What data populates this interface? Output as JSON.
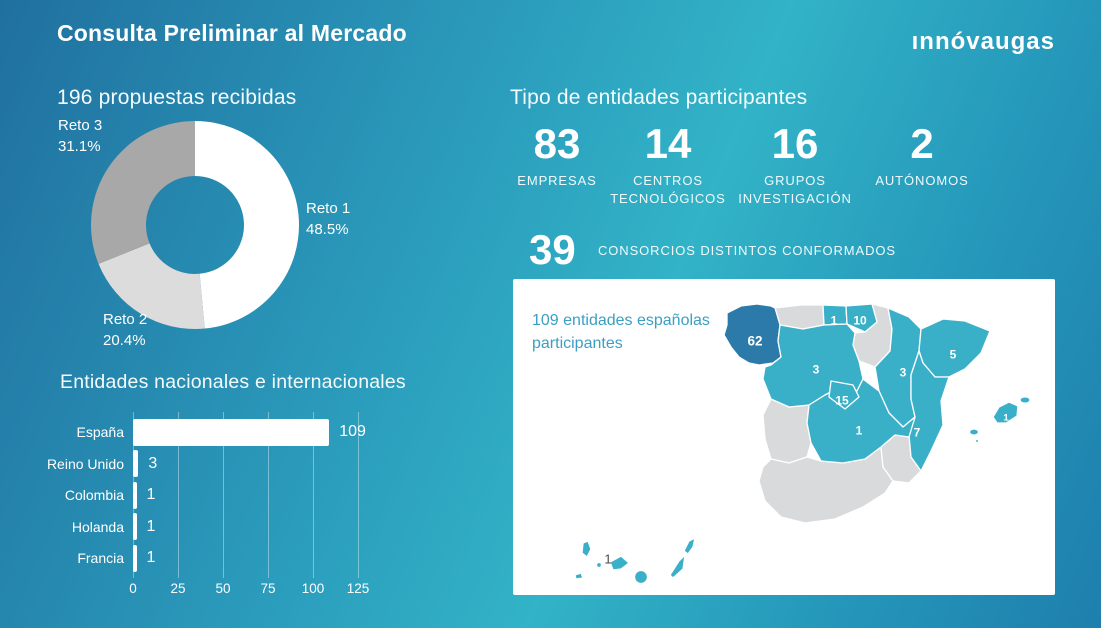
{
  "header": {
    "title": "Consulta Preliminar al Mercado",
    "brand": "ınnóvaugas"
  },
  "sections": {
    "proposals_title": "196 propuestas recibidas",
    "entities_title": "Tipo de entidades participantes",
    "countries_title": "Entidades nacionales e internacionales"
  },
  "stats": [
    {
      "value": "83",
      "label": "EMPRESAS"
    },
    {
      "value": "14",
      "label": "CENTROS TECNOLÓGICOS"
    },
    {
      "value": "16",
      "label": "GRUPOS INVESTIGACIÓN"
    },
    {
      "value": "2",
      "label": "AUTÓNOMOS"
    }
  ],
  "consortia": {
    "value": "39",
    "label": "CONSORCIOS DISTINTOS CONFORMADOS"
  },
  "colors": {
    "accent_teal": "#3ab0c8",
    "dark_blue": "#2b7aaa",
    "inactive_gray": "#d9dadc",
    "donut": [
      "#ffffff",
      "#dcdcdc",
      "#a8a8a8"
    ],
    "bar": "#ffffff",
    "card_bg": "#ffffff",
    "map_note_text": "#3b9fc3"
  },
  "chart_data": [
    {
      "type": "pie",
      "subtype": "donut",
      "title": "196 propuestas recibidas",
      "labels": [
        "Reto 1",
        "Reto 2",
        "Reto 3"
      ],
      "values": [
        48.5,
        20.4,
        31.1
      ],
      "display": [
        "48.5%",
        "20.4%",
        "31.1%"
      ],
      "colors": [
        "#ffffff",
        "#dcdcdc",
        "#a8a8a8"
      ],
      "start_angle_deg": 0,
      "direction": "clockwise"
    },
    {
      "type": "bar",
      "orientation": "horizontal",
      "title": "Entidades nacionales e internacionales",
      "categories": [
        "España",
        "Reino Unido",
        "Colombia",
        "Holanda",
        "Francia"
      ],
      "values": [
        109,
        3,
        1,
        1,
        1
      ],
      "xticks": [
        0,
        25,
        50,
        75,
        100,
        125
      ],
      "xlim": [
        0,
        136
      ],
      "grid": true,
      "bar_color": "#ffffff"
    },
    {
      "type": "map",
      "note": "109 entidades españolas participantes",
      "regions": [
        {
          "id": "galicia",
          "region": "Galicia",
          "value": 62,
          "emphasis": "dark"
        },
        {
          "id": "asturias",
          "region": "Asturias",
          "value": null,
          "emphasis": "gray"
        },
        {
          "id": "cantabria",
          "region": "Cantabria",
          "value": 1,
          "emphasis": "teal"
        },
        {
          "id": "pais-vasco",
          "region": "País Vasco",
          "value": 10,
          "emphasis": "teal"
        },
        {
          "id": "navarra-rioja",
          "region": "Navarra / La Rioja",
          "value": null,
          "emphasis": "gray"
        },
        {
          "id": "castilla-leon",
          "region": "Castilla y León",
          "value": 3,
          "emphasis": "teal"
        },
        {
          "id": "aragon",
          "region": "Aragón",
          "value": 3,
          "emphasis": "teal"
        },
        {
          "id": "cataluna",
          "region": "Cataluña",
          "value": 5,
          "emphasis": "teal"
        },
        {
          "id": "madrid",
          "region": "Madrid",
          "value": 15,
          "emphasis": "teal"
        },
        {
          "id": "castilla-la-mancha",
          "region": "Castilla-La Mancha",
          "value": 1,
          "emphasis": "teal"
        },
        {
          "id": "valencia",
          "region": "Comunidad Valenciana",
          "value": 7,
          "emphasis": "teal"
        },
        {
          "id": "murcia",
          "region": "Murcia",
          "value": null,
          "emphasis": "gray"
        },
        {
          "id": "extremadura",
          "region": "Extremadura",
          "value": null,
          "emphasis": "gray"
        },
        {
          "id": "andalucia",
          "region": "Andalucía",
          "value": null,
          "emphasis": "gray"
        },
        {
          "id": "baleares",
          "region": "Islas Baleares",
          "value": 1,
          "emphasis": "teal"
        },
        {
          "id": "canarias",
          "region": "Islas Canarias",
          "value": 1,
          "emphasis": "teal"
        }
      ]
    }
  ]
}
